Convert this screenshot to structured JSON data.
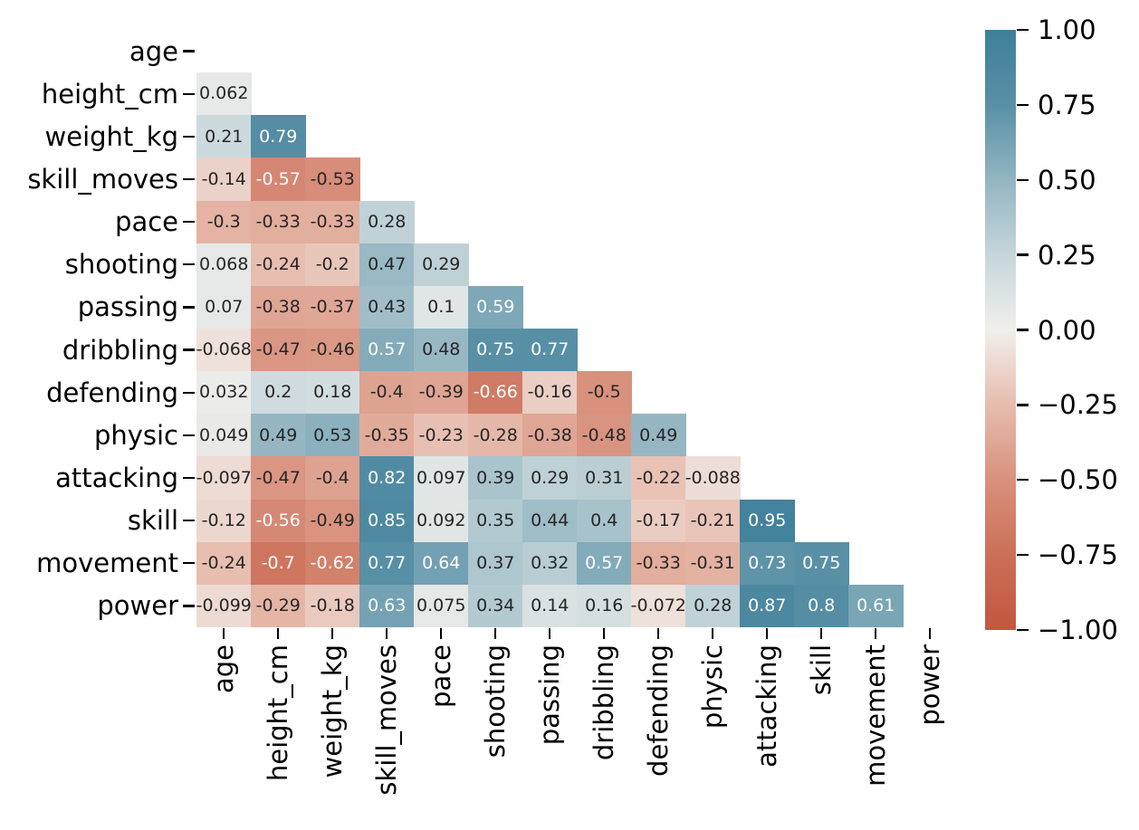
{
  "chart_data": {
    "type": "heatmap",
    "title": "",
    "xlabel": "",
    "ylabel": "",
    "description": "Lower-triangular correlation matrix heatmap with annotated coefficients",
    "variables": [
      "age",
      "height_cm",
      "weight_kg",
      "skill_moves",
      "pace",
      "shooting",
      "passing",
      "dribbling",
      "defending",
      "physic",
      "attacking",
      "skill",
      "movement",
      "power"
    ],
    "matrix_lower_triangle": [
      [],
      [
        0.062
      ],
      [
        0.21,
        0.79
      ],
      [
        -0.14,
        -0.57,
        -0.53
      ],
      [
        -0.3,
        -0.33,
        -0.33,
        0.28
      ],
      [
        0.068,
        -0.24,
        -0.2,
        0.47,
        0.29
      ],
      [
        0.07,
        -0.38,
        -0.37,
        0.43,
        0.1,
        0.59
      ],
      [
        -0.068,
        -0.47,
        -0.46,
        0.57,
        0.48,
        0.75,
        0.77
      ],
      [
        0.032,
        0.2,
        0.18,
        -0.4,
        -0.39,
        -0.66,
        -0.16,
        -0.5
      ],
      [
        0.049,
        0.49,
        0.53,
        -0.35,
        -0.23,
        -0.28,
        -0.38,
        -0.48,
        0.49
      ],
      [
        -0.097,
        -0.47,
        -0.4,
        0.82,
        0.097,
        0.39,
        0.29,
        0.31,
        -0.22,
        -0.088
      ],
      [
        -0.12,
        -0.56,
        -0.49,
        0.85,
        0.092,
        0.35,
        0.44,
        0.4,
        -0.17,
        -0.21,
        0.95
      ],
      [
        -0.24,
        -0.7,
        -0.62,
        0.77,
        0.64,
        0.37,
        0.32,
        0.57,
        -0.33,
        -0.31,
        0.73,
        0.75
      ],
      [
        -0.099,
        -0.29,
        -0.18,
        0.63,
        0.075,
        0.34,
        0.14,
        0.16,
        -0.072,
        0.28,
        0.87,
        0.8,
        0.61
      ]
    ],
    "value_range": [
      -1,
      1
    ],
    "grid": false,
    "legend_position": "colorbar-right",
    "colorbar": {
      "tick_labels": [
        "1.00",
        "0.75",
        "0.50",
        "0.25",
        "0.00",
        "−0.25",
        "−0.50",
        "−0.75",
        "−1.00"
      ],
      "tick_values": [
        1.0,
        0.75,
        0.5,
        0.25,
        0.0,
        -0.25,
        -0.5,
        -0.75,
        -1.0
      ]
    },
    "colormap_stops": [
      [
        -1.0,
        "#c2573e"
      ],
      [
        -0.75,
        "#cc6f58"
      ],
      [
        -0.5,
        "#d8917d"
      ],
      [
        -0.25,
        "#e7bcae"
      ],
      [
        0.0,
        "#f1efec"
      ],
      [
        0.25,
        "#c6d6da"
      ],
      [
        0.5,
        "#93b5c1"
      ],
      [
        0.75,
        "#5990a6"
      ],
      [
        1.0,
        "#3e7f9a"
      ]
    ],
    "annotation_white_threshold": 0.555,
    "colors": {
      "annotation_dark": "#262626",
      "annotation_light": "#ffffff",
      "tick_label": "#000000",
      "background": "#ffffff"
    }
  }
}
